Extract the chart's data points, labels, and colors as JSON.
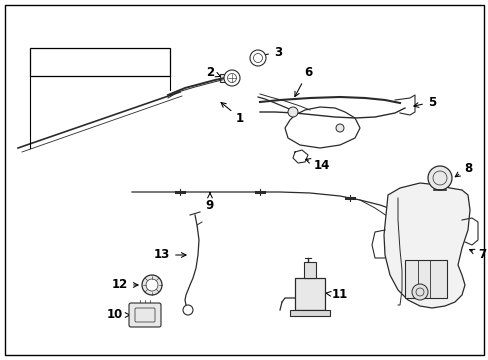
{
  "background_color": "#ffffff",
  "fig_width": 4.89,
  "fig_height": 3.6,
  "dpi": 100,
  "line_color": "#2a2a2a",
  "border_color": "#000000"
}
